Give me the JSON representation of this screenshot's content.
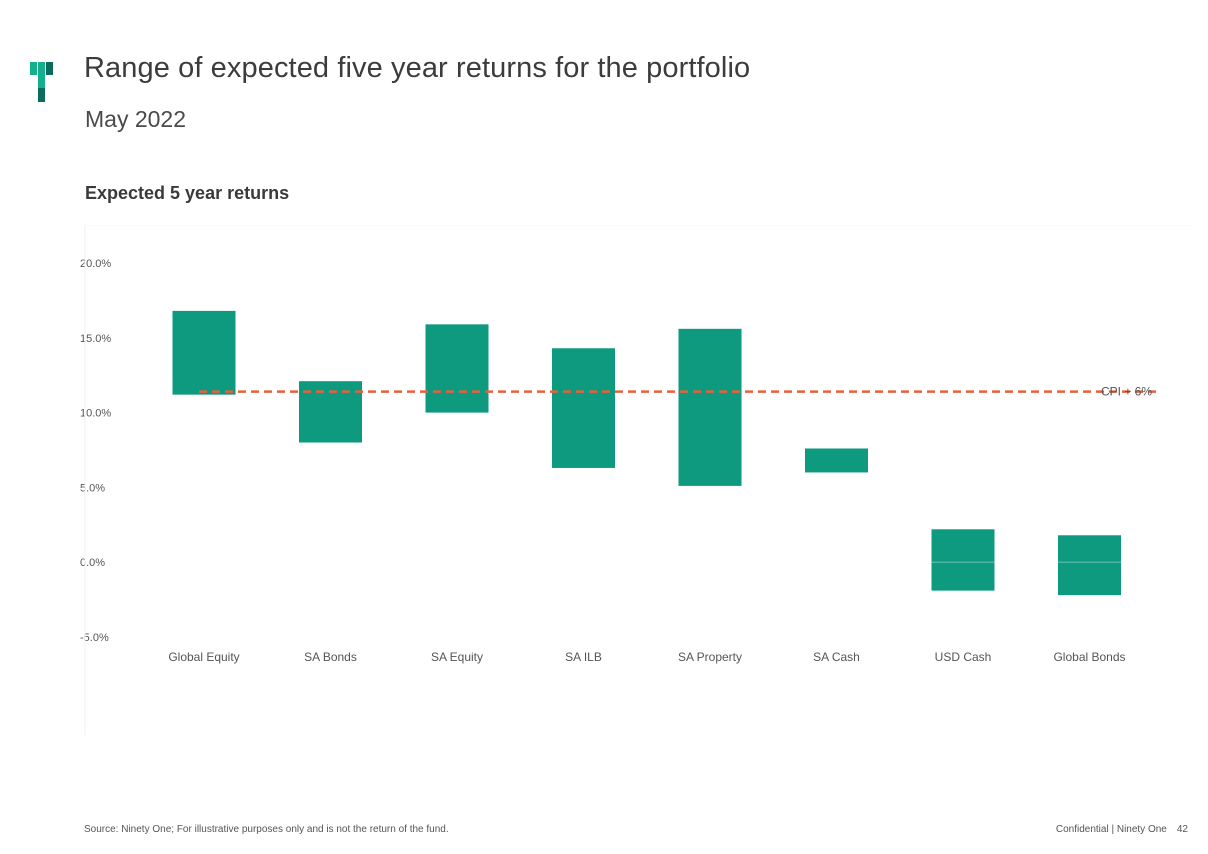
{
  "page": {
    "title": "Range of expected five year returns for the portfolio",
    "subtitle": "May 2022",
    "footer_source": "Source: Ninety One; For illustrative purposes only and is not the return of the fund.",
    "footer_confidential": "Confidential | Ninety One",
    "page_number": "42"
  },
  "colors": {
    "bar": "#0e9a7e",
    "cpi_line": "#e8603c",
    "logo_light": "#14b08e",
    "logo_dark": "#0b6b5c"
  },
  "chart_data": {
    "type": "bar",
    "subtype": "floating-range",
    "title": "Expected 5 year returns",
    "categories": [
      "Global Equity",
      "SA Bonds",
      "SA Equity",
      "SA ILB",
      "SA Property",
      "SA Cash",
      "USD Cash",
      "Global Bonds"
    ],
    "low": [
      11.2,
      8.0,
      10.0,
      6.3,
      5.1,
      6.0,
      -1.9,
      -2.2
    ],
    "high": [
      16.8,
      12.1,
      15.9,
      14.3,
      15.6,
      7.6,
      2.2,
      1.8
    ],
    "ylim": [
      -5,
      20
    ],
    "yticks": [
      20,
      15,
      10,
      5,
      0,
      -5
    ],
    "ytick_labels": [
      "20.0%",
      "15.0%",
      "10.0%",
      "5.0%",
      "0.0%",
      "-5.0%"
    ],
    "reference_line": {
      "label": "CPI + 6%",
      "value": 11.4
    },
    "zero_line": true,
    "grid": false,
    "legend": "none"
  }
}
